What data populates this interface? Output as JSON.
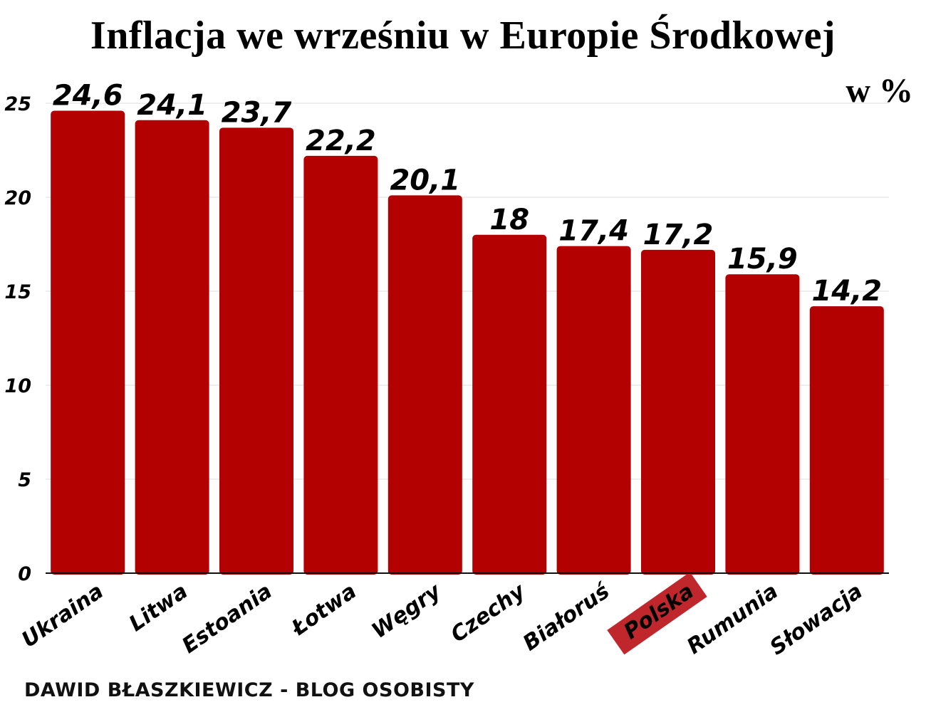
{
  "title": "Inflacja we wrześniu w Europie Środkowej",
  "unit": "w %",
  "footer": "DAWID BŁASZKIEWICZ - BLOG OSOBISTY",
  "colors": {
    "bar": "#b30000",
    "highlight": "#c0272d",
    "grid": "#dddddd",
    "axis": "#111111"
  },
  "chart_data": {
    "type": "bar",
    "categories": [
      "Ukraina",
      "Litwa",
      "Estoania",
      "Łotwa",
      "Węgry",
      "Czechy",
      "Białoruś",
      "Polska",
      "Rumunia",
      "Słowacja"
    ],
    "values": [
      24.6,
      24.1,
      23.7,
      22.2,
      20.1,
      18,
      17.4,
      17.2,
      15.9,
      14.2
    ],
    "value_labels": [
      "24,6",
      "24,1",
      "23,7",
      "22,2",
      "20,1",
      "18",
      "17,4",
      "17,2",
      "15,9",
      "14,2"
    ],
    "highlight_category": "Polska",
    "yticks": [
      0,
      5,
      10,
      15,
      20,
      25
    ],
    "ylim": [
      0,
      25
    ],
    "grid": true,
    "legend": "none"
  }
}
